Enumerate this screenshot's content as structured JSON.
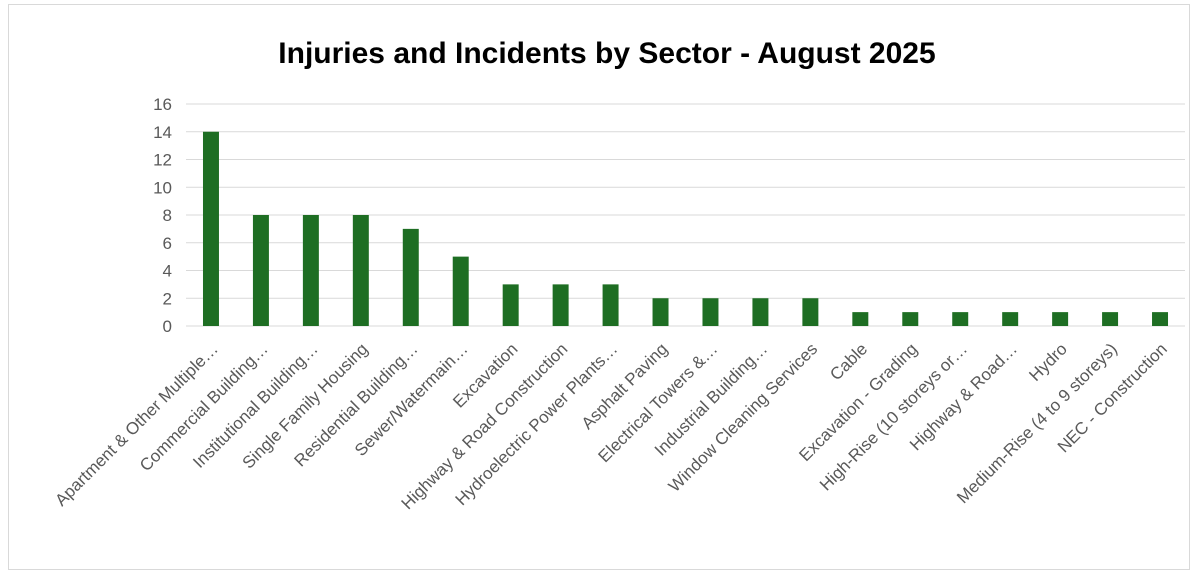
{
  "chart_data": {
    "type": "bar",
    "title": "Injuries and Incidents by Sector - August 2025",
    "xlabel": "",
    "ylabel": "",
    "ylim": [
      0,
      16
    ],
    "yticks": [
      0,
      2,
      4,
      6,
      8,
      10,
      12,
      14,
      16
    ],
    "grid": true,
    "legend": "none",
    "bar_color": "#1e6e23",
    "grid_color": "#d9d9d9",
    "categories": [
      "Apartment & Other Multiple…",
      "Commercial Building…",
      "Institutional Building…",
      "Single Family Housing",
      "Residential Building…",
      "Sewer/Watermain…",
      "Excavation",
      "Highway & Road Construction",
      "Hydroelectric Power Plants…",
      "Asphalt Paving",
      "Electrical Towers &…",
      "Industrial Building…",
      "Window Cleaning Services",
      "Cable",
      "Excavation - Grading",
      "High-Rise (10 storeys or…",
      "Highway & Road…",
      "Hydro",
      "Medium-Rise (4 to 9 storeys)",
      "NEC - Construction"
    ],
    "values": [
      14,
      8,
      8,
      8,
      7,
      5,
      3,
      3,
      3,
      2,
      2,
      2,
      2,
      1,
      1,
      1,
      1,
      1,
      1,
      1
    ]
  }
}
